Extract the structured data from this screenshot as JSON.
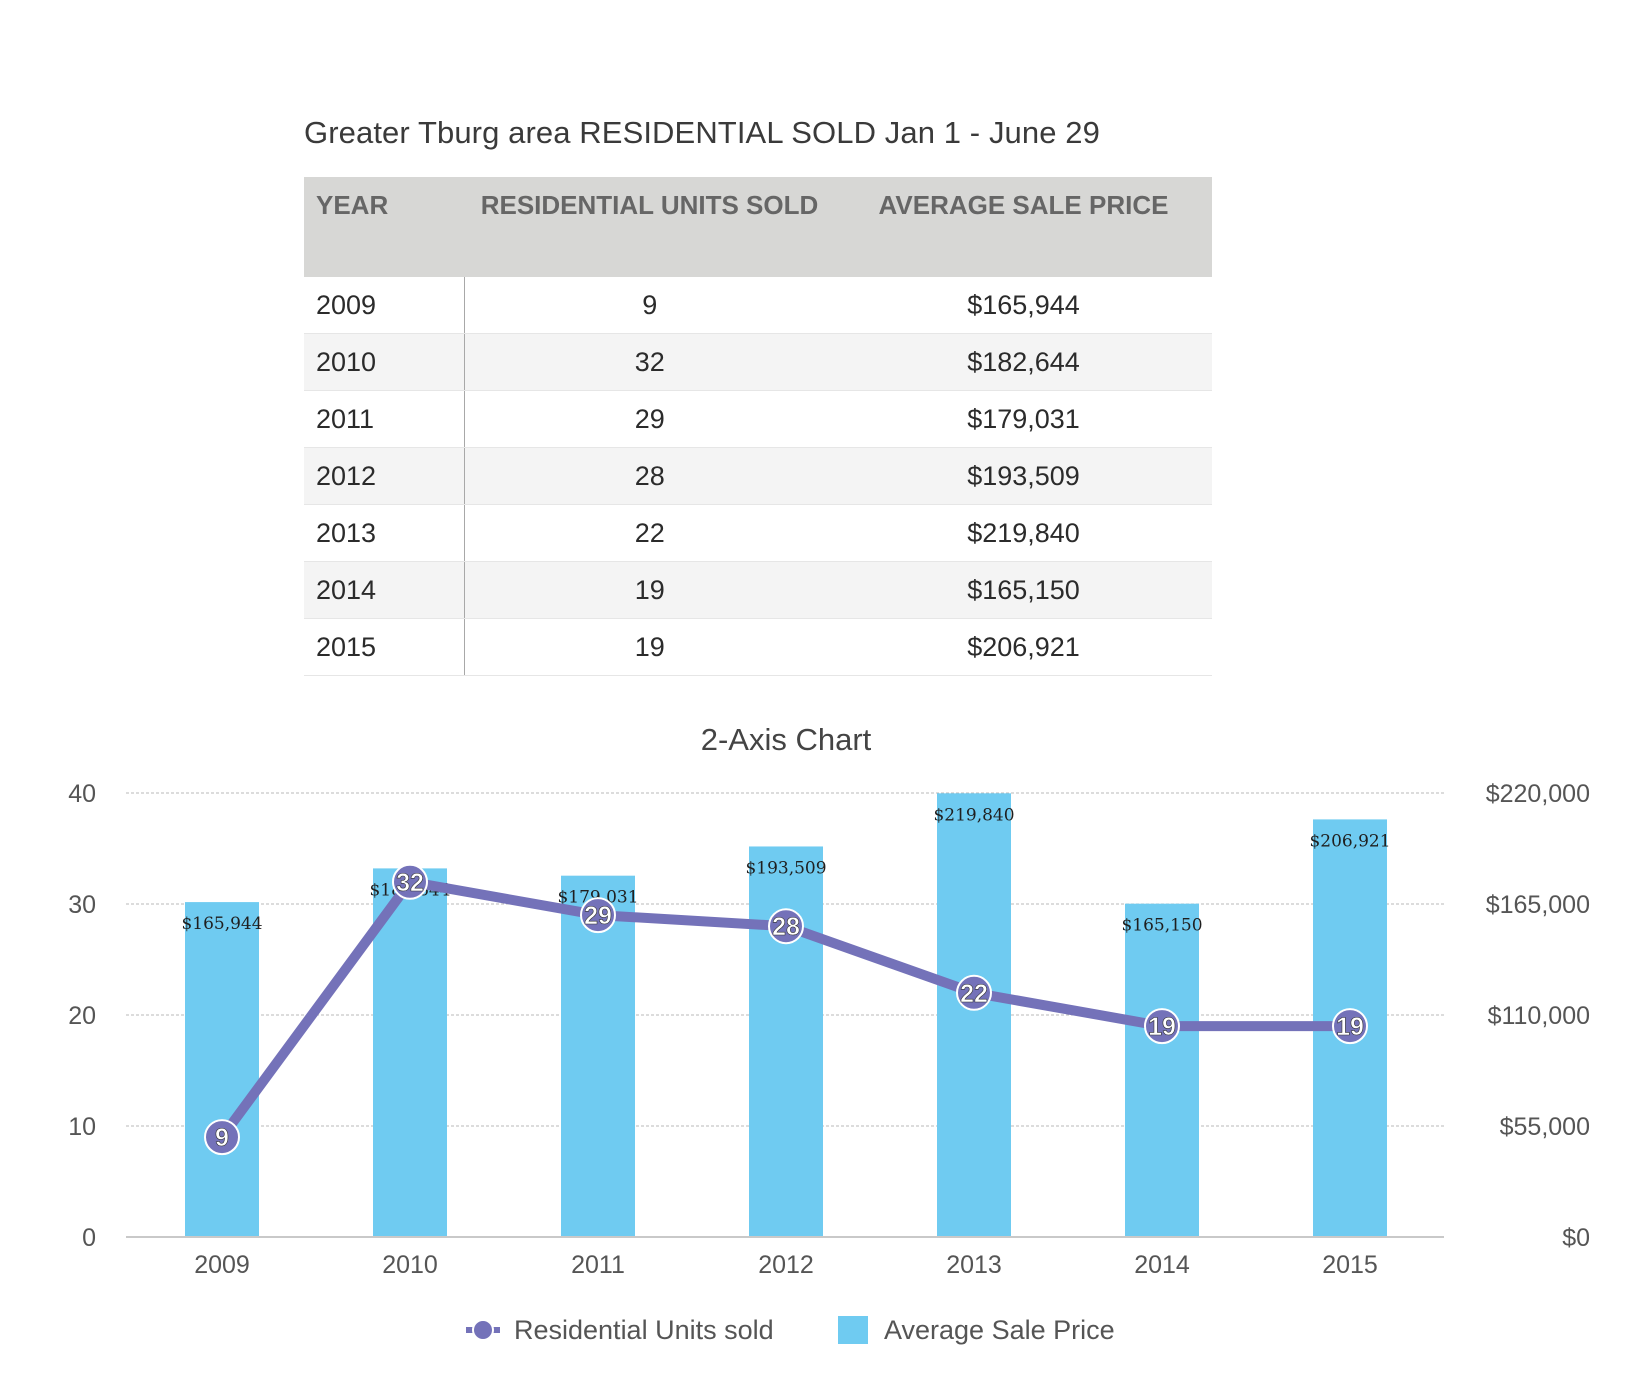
{
  "table": {
    "title": "Greater Tburg area RESIDENTIAL SOLD  Jan 1 - June 29",
    "headers": [
      "YEAR",
      "RESIDENTIAL UNITS SOLD",
      "AVERAGE SALE PRICE"
    ],
    "rows": [
      [
        "2009",
        "9",
        "$165,944"
      ],
      [
        "2010",
        "32",
        "$182,644"
      ],
      [
        "2011",
        "29",
        "$179,031"
      ],
      [
        "2012",
        "28",
        "$193,509"
      ],
      [
        "2013",
        "22",
        "$219,840"
      ],
      [
        "2014",
        "19",
        "$165,150"
      ],
      [
        "2015",
        "19",
        "$206,921"
      ]
    ]
  },
  "chart_data": {
    "type": "bar",
    "title": "2-Axis Chart",
    "categories": [
      "2009",
      "2010",
      "2011",
      "2012",
      "2013",
      "2014",
      "2015"
    ],
    "series": [
      {
        "name": "Average Sale Price",
        "type": "bar",
        "axis": "right",
        "values": [
          165944,
          182644,
          179031,
          193509,
          219840,
          165150,
          206921
        ],
        "labels": [
          "$165,944",
          "$182,644",
          "$179,031",
          "$193,509",
          "$219,840",
          "$165,150",
          "$206,921"
        ],
        "color": "#6fcbf1"
      },
      {
        "name": "Residential Units sold",
        "type": "line",
        "axis": "left",
        "values": [
          9,
          32,
          29,
          28,
          22,
          19,
          19
        ],
        "color": "#7472b9"
      }
    ],
    "y_left": {
      "ylim": [
        0,
        40
      ],
      "ticks": [
        0,
        10,
        20,
        30,
        40
      ],
      "tick_labels": [
        "0",
        "10",
        "20",
        "30",
        "40"
      ]
    },
    "y_right": {
      "ylim": [
        0,
        220000
      ],
      "ticks": [
        0,
        55000,
        110000,
        165000,
        220000
      ],
      "tick_labels": [
        "$0",
        "$55,000",
        "$110,000",
        "$165,000",
        "$220,000"
      ]
    },
    "grid": true,
    "legend": "bottom"
  }
}
